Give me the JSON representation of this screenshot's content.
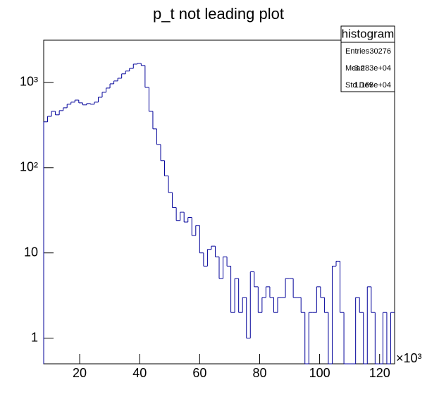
{
  "chart_data": {
    "type": "histogram",
    "title": "p_t not leading plot",
    "bins": [
      8,
      9.3,
      10.6,
      11.9,
      13.2,
      14.5,
      15.8,
      17.1,
      18.4,
      19.7,
      21,
      22.3,
      23.6,
      24.9,
      26.2,
      27.5,
      28.8,
      30.1,
      31.4,
      32.7,
      34,
      35.3,
      36.6,
      37.9,
      39.2,
      40.5,
      41.8,
      43.1,
      44.4,
      45.7,
      47,
      48.3,
      49.6,
      50.9,
      52.2,
      53.5,
      54.8,
      56.1,
      57.4,
      58.7,
      60,
      61.3,
      62.6,
      63.9,
      65.2,
      66.5,
      67.8,
      69.1,
      70.4,
      71.7,
      73,
      74.3,
      75.6,
      76.9,
      78.2,
      79.5,
      80.8,
      82.1,
      83.4,
      84.7,
      86,
      87.3,
      88.6,
      89.9,
      91.2,
      92.5,
      93.8,
      95.1,
      96.4,
      97.7,
      99,
      100.3,
      101.6,
      102.9,
      104.2,
      105.5,
      106.8,
      108.1,
      109.4,
      110.7,
      112,
      113.3,
      114.6,
      115.9,
      117.2,
      118.5,
      119.8,
      121.1,
      122.4,
      123.7,
      125
    ],
    "values": [
      345,
      400,
      458,
      417,
      467,
      504,
      555,
      587,
      620,
      576,
      545,
      565,
      555,
      587,
      670,
      766,
      859,
      963,
      1040,
      1120,
      1260,
      1360,
      1460,
      1640,
      1670,
      1580,
      875,
      458,
      285,
      187,
      121,
      80,
      51,
      34,
      24,
      30,
      23,
      26,
      16,
      21,
      10,
      7,
      11,
      12,
      9,
      5,
      9,
      7,
      2,
      5,
      2,
      3,
      1,
      6,
      4,
      2,
      3,
      4,
      3,
      2,
      3,
      3,
      5,
      5,
      3,
      3,
      2,
      0,
      2,
      2,
      4,
      3,
      2,
      0,
      7,
      8,
      2,
      0,
      0,
      0,
      3,
      2,
      0,
      4,
      2,
      0,
      0,
      2,
      0,
      2
    ],
    "color": "#000099",
    "xlim": [
      8,
      125
    ],
    "xticks": [
      20,
      40,
      60,
      80,
      100,
      120
    ],
    "x_multiplier": "×10³",
    "ylim": [
      0.5,
      3130
    ],
    "log_y": true,
    "yticks": [
      1,
      10,
      {
        "value": 100,
        "label": "10²"
      },
      {
        "value": 1000,
        "label": "10³"
      }
    ],
    "stats": {
      "title": "histogram",
      "rows": [
        [
          "Entries",
          "30276"
        ],
        [
          "Mean",
          "3.283e+04"
        ],
        [
          "Std Dev",
          "1.165e+04"
        ]
      ]
    }
  }
}
